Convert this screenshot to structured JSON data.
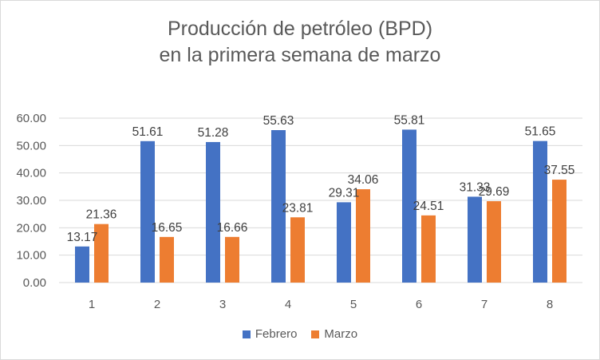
{
  "chart_data": {
    "type": "bar",
    "title_line1": "Producción de petróleo (BPD)",
    "title_line2": "en la primera semana de marzo",
    "categories": [
      "1",
      "2",
      "3",
      "4",
      "5",
      "6",
      "7",
      "8"
    ],
    "series": [
      {
        "name": "Febrero",
        "color": "#4472C4",
        "values": [
          13.17,
          51.61,
          51.28,
          55.63,
          29.31,
          55.81,
          31.33,
          51.65
        ]
      },
      {
        "name": "Marzo",
        "color": "#ED7D31",
        "values": [
          21.36,
          16.65,
          16.66,
          23.81,
          34.06,
          24.51,
          29.69,
          37.55
        ]
      }
    ],
    "ylim": [
      0,
      60
    ],
    "yticks": [
      "0.00",
      "10.00",
      "20.00",
      "30.00",
      "40.00",
      "50.00",
      "60.00"
    ],
    "grid": true,
    "legend_position": "bottom"
  }
}
